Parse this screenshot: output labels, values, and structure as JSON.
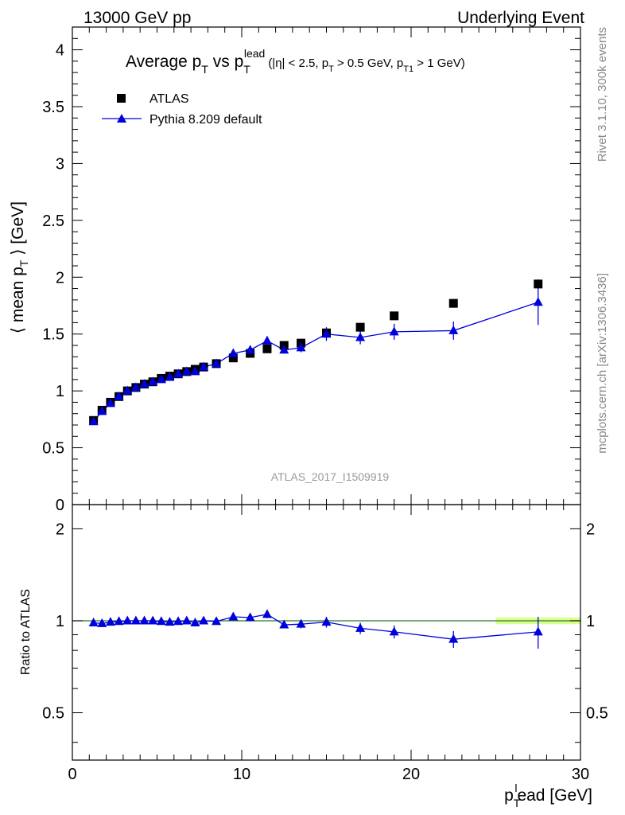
{
  "header": {
    "left": "13000 GeV pp",
    "right": "Underlying Event"
  },
  "side": {
    "rivet": "Rivet 3.1.10,  300k events",
    "mcplots": "mcplots.cern.ch [arXiv:1306.3436]"
  },
  "colors": {
    "data": "#000000",
    "mc": "#0000dd",
    "ratio_band": "#ccff66",
    "ref_line": "#2a7a2a",
    "watermark": "#999999",
    "side_text": "#888888"
  },
  "chart_data": [
    {
      "type": "scatter",
      "title": {
        "main": "Average p",
        "main_sub": "T",
        "vs": " vs p",
        "vs_sub": "T",
        "vs_sup": "lead",
        "cuts": "(|η| < 2.5, p",
        "cuts_sub1": "T",
        "cuts_mid": " > 0.5 GeV, p",
        "cuts_sub2": "T1",
        "cuts_end": " > 1 GeV)"
      },
      "ylabel": "⟨ mean p",
      "ylabel_sub": "T",
      "ylabel_end": " ⟩ [GeV]",
      "watermark": "ATLAS_2017_I1509919",
      "xlim": [
        0,
        30
      ],
      "ylim": [
        0,
        4.2
      ],
      "yticks": [
        "0",
        "0.5",
        "1",
        "1.5",
        "2",
        "2.5",
        "3",
        "3.5",
        "4"
      ],
      "legend": {
        "position": "top-left"
      },
      "series": [
        {
          "name": "ATLAS",
          "marker": "square",
          "x": [
            1.25,
            1.75,
            2.25,
            2.75,
            3.25,
            3.75,
            4.25,
            4.75,
            5.25,
            5.75,
            6.25,
            6.75,
            7.25,
            7.75,
            8.5,
            9.5,
            10.5,
            11.5,
            12.5,
            13.5,
            15.0,
            17.0,
            19.0,
            22.5,
            27.5
          ],
          "y": [
            0.74,
            0.83,
            0.9,
            0.95,
            1.0,
            1.03,
            1.06,
            1.08,
            1.11,
            1.13,
            1.15,
            1.17,
            1.19,
            1.21,
            1.24,
            1.29,
            1.33,
            1.37,
            1.4,
            1.42,
            1.51,
            1.56,
            1.66,
            1.77,
            1.94
          ],
          "err": [
            0.01,
            0.01,
            0.01,
            0.01,
            0.01,
            0.01,
            0.01,
            0.01,
            0.01,
            0.01,
            0.01,
            0.01,
            0.01,
            0.01,
            0.01,
            0.01,
            0.01,
            0.01,
            0.01,
            0.01,
            0.02,
            0.02,
            0.02,
            0.03,
            0.04
          ]
        },
        {
          "name": "Pythia 8.209 default",
          "marker": "triangle",
          "x": [
            1.25,
            1.75,
            2.25,
            2.75,
            3.25,
            3.75,
            4.25,
            4.75,
            5.25,
            5.75,
            6.25,
            6.75,
            7.25,
            7.75,
            8.5,
            9.5,
            10.5,
            11.5,
            12.5,
            13.5,
            15.0,
            17.0,
            19.0,
            22.5,
            27.5
          ],
          "y": [
            0.73,
            0.82,
            0.89,
            0.95,
            1.0,
            1.03,
            1.06,
            1.08,
            1.1,
            1.12,
            1.15,
            1.17,
            1.17,
            1.21,
            1.24,
            1.33,
            1.36,
            1.44,
            1.36,
            1.38,
            1.5,
            1.47,
            1.52,
            1.53,
            1.78
          ],
          "err": [
            0.01,
            0.01,
            0.01,
            0.01,
            0.01,
            0.01,
            0.01,
            0.01,
            0.01,
            0.01,
            0.01,
            0.02,
            0.02,
            0.02,
            0.02,
            0.03,
            0.03,
            0.04,
            0.03,
            0.04,
            0.06,
            0.06,
            0.07,
            0.08,
            0.2
          ]
        }
      ]
    },
    {
      "type": "scatter",
      "ylabel": "Ratio to ATLAS",
      "xlabel": "p",
      "xlabel_sub": "T",
      "xlabel_sup": "l",
      "xlabel_end": "ead [GeV]",
      "xlim": [
        0,
        30
      ],
      "ylim": [
        0.35,
        2.4
      ],
      "yscale": "log",
      "xticks": [
        "0",
        "10",
        "20",
        "30"
      ],
      "yticks": [
        "0.5",
        "1",
        "2"
      ],
      "band": {
        "x": [
          25,
          30
        ],
        "lo": 0.975,
        "hi": 1.025
      },
      "series": [
        {
          "name": "Pythia 8.209 default",
          "marker": "triangle",
          "x": [
            1.25,
            1.75,
            2.25,
            2.75,
            3.25,
            3.75,
            4.25,
            4.75,
            5.25,
            5.75,
            6.25,
            6.75,
            7.25,
            7.75,
            8.5,
            9.5,
            10.5,
            11.5,
            12.5,
            13.5,
            15.0,
            17.0,
            19.0,
            22.5,
            27.5
          ],
          "y": [
            0.985,
            0.98,
            0.99,
            0.995,
            1.0,
            1.0,
            1.0,
            1.0,
            0.995,
            0.99,
            0.995,
            1.0,
            0.985,
            1.0,
            0.995,
            1.03,
            1.025,
            1.05,
            0.97,
            0.975,
            0.99,
            0.945,
            0.92,
            0.87,
            0.92
          ],
          "err": [
            0.01,
            0.01,
            0.01,
            0.01,
            0.01,
            0.01,
            0.01,
            0.01,
            0.01,
            0.01,
            0.01,
            0.015,
            0.015,
            0.015,
            0.015,
            0.02,
            0.02,
            0.03,
            0.02,
            0.03,
            0.04,
            0.04,
            0.045,
            0.055,
            0.11
          ]
        }
      ]
    }
  ]
}
